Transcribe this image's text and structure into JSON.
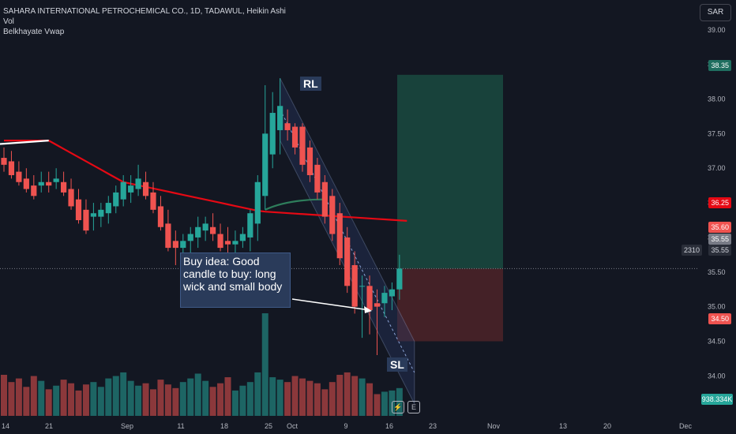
{
  "legend": {
    "title": "SAHARA INTERNATIONAL PETROCHEMICAL CO., 1D, TADAWUL, Heikin Ashi",
    "vol": "Vol",
    "indicator": "Belkhayate Vwap"
  },
  "currency": "SAR",
  "annotation": "Buy idea: Good candle to buy: long wick and small body",
  "tags": {
    "rl": "RL",
    "sl": "SL"
  },
  "price_labels": {
    "target": "38.35",
    "vwap": "36.25",
    "high": "35.60",
    "close": "35.55",
    "last": "35.55",
    "stop": "34.50",
    "count": "2310",
    "volume": "938.334K"
  },
  "colors": {
    "up": "#26a69a",
    "down": "#ef5350",
    "vwap_red": "#e50914",
    "vwap_green": "#2e7d5b",
    "target_zone": "#1a4a40",
    "stop_zone": "#4a2228"
  },
  "icons": [
    "lightning-icon",
    "e-icon"
  ],
  "chart_data": {
    "type": "candlestick",
    "title": "SAHARA INTERNATIONAL PETROCHEMICAL CO., 1D, TADAWUL, Heikin Ashi",
    "ylim": [
      33.4,
      39.1
    ],
    "y_ticks": [
      34.0,
      34.5,
      35.0,
      35.5,
      36.0,
      36.5,
      37.0,
      37.5,
      38.0,
      38.5,
      39.0
    ],
    "x_ticks": [
      "14",
      "21",
      "Sep",
      "11",
      "18",
      "25",
      "Oct",
      "9",
      "16",
      "23",
      "Nov",
      "13",
      "20",
      "Dec"
    ],
    "candles": [
      {
        "o": 37.15,
        "h": 37.3,
        "l": 36.95,
        "c": 37.05
      },
      {
        "o": 37.1,
        "h": 37.25,
        "l": 36.85,
        "c": 36.9
      },
      {
        "o": 36.95,
        "h": 37.1,
        "l": 36.75,
        "c": 36.8
      },
      {
        "o": 36.85,
        "h": 37.0,
        "l": 36.65,
        "c": 36.7
      },
      {
        "o": 36.75,
        "h": 36.9,
        "l": 36.55,
        "c": 36.6
      },
      {
        "o": 36.75,
        "h": 36.95,
        "l": 36.65,
        "c": 36.8
      },
      {
        "o": 36.8,
        "h": 36.95,
        "l": 36.65,
        "c": 36.75
      },
      {
        "o": 36.8,
        "h": 37.0,
        "l": 36.7,
        "c": 36.85
      },
      {
        "o": 36.8,
        "h": 36.95,
        "l": 36.6,
        "c": 36.65
      },
      {
        "o": 36.7,
        "h": 36.85,
        "l": 36.4,
        "c": 36.45
      },
      {
        "o": 36.55,
        "h": 36.7,
        "l": 36.2,
        "c": 36.25
      },
      {
        "o": 36.4,
        "h": 36.55,
        "l": 36.05,
        "c": 36.1
      },
      {
        "o": 36.3,
        "h": 36.5,
        "l": 36.1,
        "c": 36.35
      },
      {
        "o": 36.3,
        "h": 36.5,
        "l": 36.15,
        "c": 36.4
      },
      {
        "o": 36.35,
        "h": 36.6,
        "l": 36.2,
        "c": 36.5
      },
      {
        "o": 36.45,
        "h": 36.75,
        "l": 36.35,
        "c": 36.65
      },
      {
        "o": 36.55,
        "h": 36.9,
        "l": 36.45,
        "c": 36.8
      },
      {
        "o": 36.65,
        "h": 36.9,
        "l": 36.5,
        "c": 36.75
      },
      {
        "o": 36.7,
        "h": 37.05,
        "l": 36.6,
        "c": 36.85
      },
      {
        "o": 36.8,
        "h": 36.95,
        "l": 36.55,
        "c": 36.6
      },
      {
        "o": 36.65,
        "h": 36.8,
        "l": 36.35,
        "c": 36.4
      },
      {
        "o": 36.45,
        "h": 36.6,
        "l": 36.1,
        "c": 36.15
      },
      {
        "o": 36.2,
        "h": 36.4,
        "l": 35.8,
        "c": 35.85
      },
      {
        "o": 35.95,
        "h": 36.1,
        "l": 35.6,
        "c": 35.85
      },
      {
        "o": 35.85,
        "h": 36.05,
        "l": 35.65,
        "c": 35.95
      },
      {
        "o": 35.95,
        "h": 36.15,
        "l": 35.75,
        "c": 36.05
      },
      {
        "o": 36.0,
        "h": 36.3,
        "l": 35.85,
        "c": 36.15
      },
      {
        "o": 36.1,
        "h": 36.3,
        "l": 35.95,
        "c": 36.2
      },
      {
        "o": 36.15,
        "h": 36.35,
        "l": 35.95,
        "c": 36.05
      },
      {
        "o": 36.05,
        "h": 36.2,
        "l": 35.8,
        "c": 35.85
      },
      {
        "o": 35.95,
        "h": 36.15,
        "l": 35.75,
        "c": 35.9
      },
      {
        "o": 35.9,
        "h": 36.1,
        "l": 35.75,
        "c": 35.95
      },
      {
        "o": 35.95,
        "h": 36.15,
        "l": 35.85,
        "c": 36.05
      },
      {
        "o": 36.0,
        "h": 36.4,
        "l": 35.8,
        "c": 36.35
      },
      {
        "o": 36.2,
        "h": 36.9,
        "l": 35.95,
        "c": 36.8
      },
      {
        "o": 36.6,
        "h": 38.2,
        "l": 36.4,
        "c": 37.5
      },
      {
        "o": 37.2,
        "h": 38.1,
        "l": 37.0,
        "c": 37.8
      },
      {
        "o": 37.55,
        "h": 38.3,
        "l": 37.2,
        "c": 37.9
      },
      {
        "o": 37.65,
        "h": 37.85,
        "l": 37.4,
        "c": 37.55
      },
      {
        "o": 37.6,
        "h": 37.65,
        "l": 37.2,
        "c": 37.3
      },
      {
        "o": 37.6,
        "h": 37.65,
        "l": 36.95,
        "c": 37.05
      },
      {
        "o": 37.3,
        "h": 37.4,
        "l": 36.8,
        "c": 36.9
      },
      {
        "o": 37.05,
        "h": 37.15,
        "l": 36.55,
        "c": 36.65
      },
      {
        "o": 36.8,
        "h": 36.9,
        "l": 36.2,
        "c": 36.3
      },
      {
        "o": 36.6,
        "h": 36.7,
        "l": 35.95,
        "c": 36.05
      },
      {
        "o": 36.35,
        "h": 36.5,
        "l": 35.6,
        "c": 35.7
      },
      {
        "o": 36.0,
        "h": 36.15,
        "l": 35.2,
        "c": 35.3
      },
      {
        "o": 35.6,
        "h": 35.8,
        "l": 34.9,
        "c": 35.0
      },
      {
        "o": 35.3,
        "h": 35.45,
        "l": 34.55,
        "c": 35.3
      },
      {
        "o": 35.3,
        "h": 35.45,
        "l": 34.6,
        "c": 34.95
      },
      {
        "o": 35.05,
        "h": 35.25,
        "l": 34.3,
        "c": 35.0
      },
      {
        "o": 35.05,
        "h": 35.3,
        "l": 34.85,
        "c": 35.2
      },
      {
        "o": 35.15,
        "h": 35.35,
        "l": 34.95,
        "c": 35.25
      },
      {
        "o": 35.25,
        "h": 35.75,
        "l": 35.1,
        "c": 35.55
      }
    ],
    "volume": [
      34,
      28,
      31,
      24,
      33,
      29,
      22,
      25,
      30,
      27,
      21,
      26,
      28,
      24,
      31,
      33,
      36,
      29,
      25,
      27,
      22,
      30,
      26,
      23,
      28,
      31,
      35,
      29,
      24,
      27,
      32,
      21,
      25,
      28,
      36,
      85,
      32,
      30,
      28,
      33,
      31,
      29,
      27,
      22,
      28,
      34,
      36,
      33,
      31,
      27,
      18,
      20,
      21,
      23
    ]
  }
}
